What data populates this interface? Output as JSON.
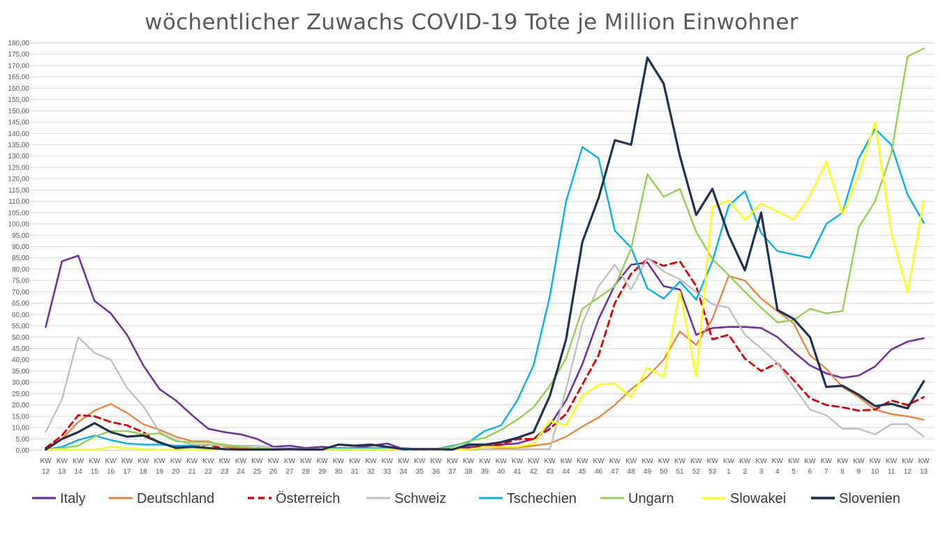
{
  "chart_data": {
    "type": "line",
    "title": "wöchentlicher Zuwachs COVID-19 Tote je Million Einwohner",
    "xlabel": "",
    "ylabel": "",
    "ylim": [
      0,
      180
    ],
    "ytick_step": 5,
    "grid": true,
    "legend_position": "bottom",
    "categories": [
      [
        "KW",
        "12"
      ],
      [
        "KW",
        "13"
      ],
      [
        "KW",
        "14"
      ],
      [
        "KW",
        "15"
      ],
      [
        "KW",
        "16"
      ],
      [
        "KW",
        "17"
      ],
      [
        "KW",
        "18"
      ],
      [
        "KW",
        "19"
      ],
      [
        "KW",
        "20"
      ],
      [
        "KW",
        "21"
      ],
      [
        "KW",
        "22"
      ],
      [
        "KW",
        "23"
      ],
      [
        "KW",
        "24"
      ],
      [
        "KW",
        "25"
      ],
      [
        "KW",
        "26"
      ],
      [
        "KW",
        "27"
      ],
      [
        "KW",
        "28"
      ],
      [
        "KW",
        "29"
      ],
      [
        "KW",
        "30"
      ],
      [
        "KW",
        "31"
      ],
      [
        "KW",
        "32"
      ],
      [
        "KW",
        "33"
      ],
      [
        "KW",
        "34"
      ],
      [
        "KW",
        "35"
      ],
      [
        "KW",
        "36"
      ],
      [
        "KW",
        "37"
      ],
      [
        "KW",
        "38"
      ],
      [
        "KW",
        "39"
      ],
      [
        "KW",
        "40"
      ],
      [
        "KW",
        "41"
      ],
      [
        "KW",
        "42"
      ],
      [
        "KW",
        "43"
      ],
      [
        "KW",
        "44"
      ],
      [
        "KW",
        "45"
      ],
      [
        "KW",
        "46"
      ],
      [
        "KW",
        "47"
      ],
      [
        "KW",
        "48"
      ],
      [
        "KW",
        "49"
      ],
      [
        "KW",
        "50"
      ],
      [
        "KW",
        "51"
      ],
      [
        "KW",
        "52"
      ],
      [
        "KW",
        "53"
      ],
      [
        "KW",
        "1"
      ],
      [
        "KW",
        "2"
      ],
      [
        "KW",
        "3"
      ],
      [
        "KW",
        "4"
      ],
      [
        "KW",
        "5"
      ],
      [
        "KW",
        "6"
      ],
      [
        "KW",
        "7"
      ],
      [
        "KW",
        "8"
      ],
      [
        "KW",
        "9"
      ],
      [
        "KW",
        "10"
      ],
      [
        "KW",
        "11"
      ],
      [
        "KW",
        "12"
      ],
      [
        "KW",
        "13"
      ]
    ],
    "series": [
      {
        "name": "Italy",
        "color": "#7030a0",
        "dash": false,
        "width": 2.6,
        "values": [
          54.5,
          83.5,
          86,
          66,
          60.5,
          51,
          37.5,
          27,
          22,
          15.5,
          9.5,
          8,
          7,
          5,
          1.5,
          2,
          1,
          1.5,
          1,
          1,
          2,
          3,
          0.5,
          0.5,
          0.5,
          0.5,
          1.5,
          1.5,
          2.5,
          3,
          5,
          11,
          22,
          38,
          58,
          73,
          82,
          83,
          72.5,
          71,
          51,
          54,
          54.5,
          54.5,
          54,
          50,
          43.5,
          37.5,
          34,
          32,
          33,
          37,
          44.5,
          48,
          49.5
        ]
      },
      {
        "name": "Deutschland",
        "color": "#ed7d31",
        "dash": false,
        "width": 2.2,
        "values": [
          1,
          5,
          12.5,
          17.5,
          20.5,
          16.5,
          11.5,
          9,
          6,
          4,
          4,
          1.5,
          1,
          0.5,
          0.5,
          0.5,
          0.3,
          0.3,
          0.3,
          0.3,
          0.3,
          0.3,
          0.3,
          0.3,
          0.3,
          0.3,
          0.3,
          0.5,
          0.8,
          1.2,
          2,
          3,
          6,
          10.5,
          14.5,
          20,
          27,
          32.5,
          40,
          52.5,
          46.5,
          58,
          77,
          75,
          67,
          61.5,
          56,
          42,
          36,
          28,
          23.5,
          18,
          16,
          15,
          13.5
        ]
      },
      {
        "name": "Österreich",
        "color": "#e00000",
        "dash": true,
        "width": 2.8,
        "values": [
          1,
          6.5,
          15.5,
          15,
          12.5,
          11,
          8,
          3,
          1.5,
          1.5,
          2.5,
          0.5,
          0.3,
          1,
          0.3,
          0.3,
          0.3,
          0.3,
          0.3,
          0.3,
          0.3,
          0.3,
          0.3,
          0.3,
          0.3,
          0.3,
          1,
          2,
          2.5,
          5,
          5,
          9.5,
          16,
          29,
          42,
          65,
          78,
          84.5,
          81.5,
          83.5,
          72.5,
          49,
          51,
          40.5,
          35,
          38.5,
          31,
          23,
          20,
          19,
          17.5,
          18,
          22,
          20,
          23.5
        ]
      },
      {
        "name": "Schweiz",
        "color": "#bfbfbf",
        "dash": false,
        "width": 2.4,
        "values": [
          8,
          22.5,
          50,
          43,
          40,
          27.5,
          19.5,
          8,
          4.5,
          2.5,
          2.5,
          2,
          2,
          2,
          1,
          1,
          0.5,
          0.5,
          1,
          1,
          0.5,
          0.5,
          0.5,
          0.5,
          0.5,
          0.5,
          0.5,
          0.5,
          0.5,
          0.5,
          0.5,
          0.5,
          27,
          56,
          72.5,
          82,
          71,
          85,
          79,
          75.5,
          70,
          64.5,
          63,
          51,
          45,
          38.5,
          28,
          18,
          15.5,
          9.5,
          9.5,
          7,
          11.5,
          11.5,
          6
        ]
      },
      {
        "name": "Tschechien",
        "color": "#00b0f0",
        "dash": false,
        "width": 2.4,
        "values": [
          0.3,
          1.5,
          4.5,
          6.5,
          4.5,
          3,
          2.5,
          2.5,
          2,
          2,
          1,
          0.3,
          0.3,
          0.3,
          0.3,
          0.3,
          0.3,
          0.3,
          1,
          1,
          1,
          1,
          1,
          0.5,
          0.5,
          2,
          3.5,
          8.5,
          11,
          22,
          37.5,
          68,
          110,
          134,
          129,
          97,
          89.5,
          71.5,
          67,
          74.5,
          66.5,
          83.5,
          108,
          114.5,
          96,
          88,
          86.5,
          85,
          100,
          105,
          129,
          142,
          135,
          113,
          100.5
        ]
      },
      {
        "name": "Ungarn",
        "color": "#92d050",
        "dash": false,
        "width": 2.4,
        "values": [
          0.3,
          1,
          2,
          6,
          8.5,
          8.5,
          7,
          7.5,
          4,
          3.5,
          3.5,
          2.5,
          1.5,
          1,
          0.5,
          0.5,
          0.5,
          0.5,
          0.5,
          0.5,
          0.5,
          0.5,
          0.5,
          0.5,
          0.5,
          1.5,
          4,
          5.5,
          9,
          13.5,
          19,
          28.5,
          40.5,
          62.5,
          67.5,
          72.5,
          89,
          122,
          112,
          115.5,
          96.5,
          84.5,
          77.5,
          70,
          63,
          56.5,
          57.5,
          62.5,
          60.5,
          61.5,
          98.5,
          110,
          131,
          174,
          177.5
        ]
      },
      {
        "name": "Slowakei",
        "color": "#ffff00",
        "dash": false,
        "width": 2.4,
        "values": [
          0.3,
          0.3,
          0.3,
          0.3,
          1.5,
          1,
          0.5,
          0.3,
          0.3,
          0.3,
          0.3,
          0.3,
          0.3,
          0.3,
          0.3,
          0.3,
          0.3,
          0.3,
          0.3,
          0.3,
          0.3,
          0.3,
          0.3,
          0.3,
          0.3,
          0.3,
          0.3,
          1.5,
          1.5,
          1.5,
          3,
          13,
          11,
          24,
          29,
          29.5,
          23.5,
          36.5,
          32.5,
          70,
          32.5,
          107.5,
          110.5,
          102,
          109,
          105.5,
          102,
          112.5,
          127.5,
          104.5,
          121.5,
          145,
          96,
          70,
          110.5
        ]
      },
      {
        "name": "Slovenien",
        "color": "#1f3251",
        "dash": false,
        "width": 3.2,
        "values": [
          0.3,
          5,
          8,
          12,
          8,
          6,
          6.5,
          3.5,
          1,
          1.5,
          1,
          0.5,
          0.3,
          0.3,
          0.3,
          0.5,
          0.3,
          0.3,
          2.5,
          2,
          2.5,
          1.5,
          0.5,
          0.5,
          0.5,
          0.3,
          2.5,
          2.5,
          3.5,
          5.5,
          8,
          24,
          49,
          92,
          111.5,
          137,
          135,
          173.5,
          162,
          130,
          104,
          115.5,
          95,
          79.5,
          105,
          62,
          58,
          50,
          28,
          28.5,
          24.5,
          19.5,
          20.5,
          18.5,
          30.5
        ]
      }
    ]
  }
}
